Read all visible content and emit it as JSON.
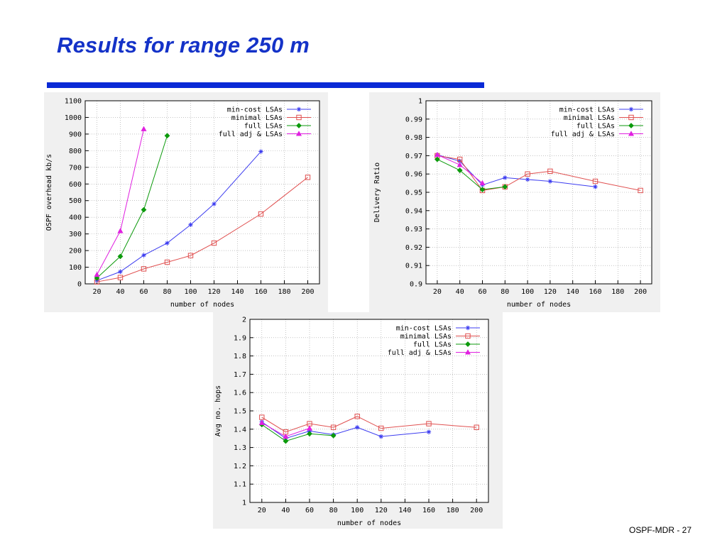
{
  "slide": {
    "title": "Results for range 250 m",
    "footer": "OSPF-MDR - 27",
    "title_color": "#1432c8",
    "rule_color": "#0a2ad6"
  },
  "series_styles": [
    {
      "name": "min-cost LSAs",
      "color": "#3c3cf0",
      "marker": "asterisk"
    },
    {
      "name": "minimal LSAs",
      "color": "#e05050",
      "marker": "square"
    },
    {
      "name": "full LSAs",
      "color": "#0c9a0c",
      "marker": "diamond"
    },
    {
      "name": "full adj & LSAs",
      "color": "#e020e0",
      "marker": "triangle"
    }
  ],
  "chart_data": [
    {
      "type": "line",
      "xlabel": "number of nodes",
      "ylabel": "OSPF overhead kb/s",
      "xlim": [
        10,
        210
      ],
      "ylim": [
        0,
        1100
      ],
      "xticks": [
        "20",
        "40",
        "60",
        "80",
        "100",
        "120",
        "140",
        "160",
        "180",
        "200"
      ],
      "yticks": [
        "0",
        "100",
        "200",
        "300",
        "400",
        "500",
        "600",
        "700",
        "800",
        "900",
        "1000",
        "1100"
      ],
      "grid": true,
      "legend": "top-right",
      "series": [
        {
          "name": "min-cost LSAs",
          "x": [
            20,
            40,
            60,
            80,
            100,
            120,
            160
          ],
          "y": [
            20,
            73,
            172,
            245,
            355,
            480,
            795
          ]
        },
        {
          "name": "minimal LSAs",
          "x": [
            20,
            40,
            60,
            80,
            100,
            120,
            160,
            200
          ],
          "y": [
            12,
            38,
            90,
            130,
            170,
            245,
            420,
            640
          ]
        },
        {
          "name": "full LSAs",
          "x": [
            20,
            40,
            60,
            80
          ],
          "y": [
            35,
            165,
            445,
            890
          ]
        },
        {
          "name": "full adj & LSAs",
          "x": [
            20,
            40,
            60
          ],
          "y": [
            55,
            318,
            930
          ]
        }
      ]
    },
    {
      "type": "line",
      "xlabel": "number of nodes",
      "ylabel": "Delivery Ratio",
      "xlim": [
        10,
        210
      ],
      "ylim": [
        0.9,
        1
      ],
      "xticks": [
        "20",
        "40",
        "60",
        "80",
        "100",
        "120",
        "140",
        "160",
        "180",
        "200"
      ],
      "yticks": [
        "0.9",
        "0.91",
        "0.92",
        "0.93",
        "0.94",
        "0.95",
        "0.96",
        "0.97",
        "0.98",
        "0.99",
        "1"
      ],
      "grid": true,
      "legend": "top-right",
      "series": [
        {
          "name": "min-cost LSAs",
          "x": [
            20,
            40,
            60,
            80,
            100,
            120,
            160
          ],
          "y": [
            0.9705,
            0.967,
            0.954,
            0.958,
            0.957,
            0.956,
            0.953
          ]
        },
        {
          "name": "minimal LSAs",
          "x": [
            20,
            40,
            60,
            80,
            100,
            120,
            160,
            200
          ],
          "y": [
            0.97,
            0.968,
            0.951,
            0.953,
            0.96,
            0.9615,
            0.956,
            0.951
          ]
        },
        {
          "name": "full LSAs",
          "x": [
            20,
            40,
            60,
            80
          ],
          "y": [
            0.968,
            0.962,
            0.9515,
            0.953
          ]
        },
        {
          "name": "full adj & LSAs",
          "x": [
            20,
            40,
            60
          ],
          "y": [
            0.9705,
            0.965,
            0.955
          ]
        }
      ]
    },
    {
      "type": "line",
      "xlabel": "number of nodes",
      "ylabel": "Avg no. hops",
      "xlim": [
        10,
        210
      ],
      "ylim": [
        1,
        2
      ],
      "xticks": [
        "20",
        "40",
        "60",
        "80",
        "100",
        "120",
        "140",
        "160",
        "180",
        "200"
      ],
      "yticks": [
        "1",
        "1.1",
        "1.2",
        "1.3",
        "1.4",
        "1.5",
        "1.6",
        "1.7",
        "1.8",
        "1.9",
        "2"
      ],
      "grid": true,
      "legend": "top-right",
      "series": [
        {
          "name": "min-cost LSAs",
          "x": [
            20,
            40,
            60,
            80,
            100,
            120,
            160
          ],
          "y": [
            1.44,
            1.35,
            1.39,
            1.37,
            1.41,
            1.36,
            1.385
          ]
        },
        {
          "name": "minimal LSAs",
          "x": [
            20,
            40,
            60,
            80,
            100,
            120,
            160,
            200
          ],
          "y": [
            1.465,
            1.385,
            1.43,
            1.41,
            1.47,
            1.405,
            1.43,
            1.41
          ]
        },
        {
          "name": "full LSAs",
          "x": [
            20,
            40,
            60,
            80
          ],
          "y": [
            1.425,
            1.335,
            1.375,
            1.365
          ]
        },
        {
          "name": "full adj & LSAs",
          "x": [
            20,
            40,
            60
          ],
          "y": [
            1.435,
            1.36,
            1.405
          ]
        }
      ]
    }
  ]
}
